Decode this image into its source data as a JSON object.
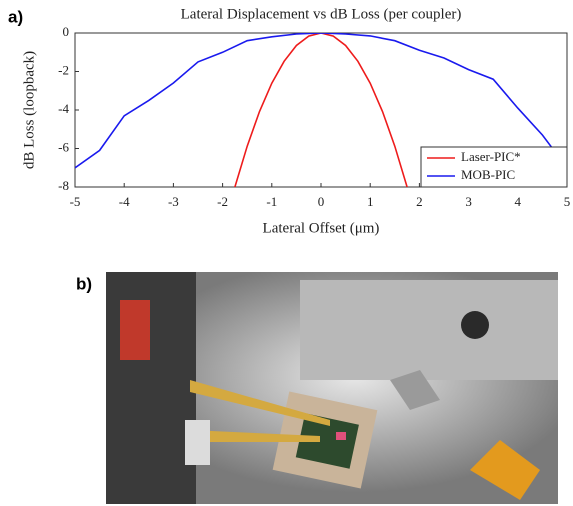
{
  "panel_labels": [
    "a)",
    "b)"
  ],
  "chart_data": {
    "type": "line",
    "title": "Lateral Displacement vs dB Loss (per coupler)",
    "x_label": "Lateral Offset (μm)",
    "y_label": "dB Loss (loopback)",
    "xlim": [
      -5,
      5
    ],
    "xticks": [
      -5,
      -4,
      -3,
      -2,
      -1,
      0,
      1,
      2,
      3,
      4,
      5
    ],
    "ylim": [
      -8,
      0
    ],
    "yticks": [
      -8,
      -6,
      -4,
      -2,
      0
    ],
    "legend": "lower right",
    "series": [
      {
        "name": "Laser-PIC*",
        "color": "#ee1c1c",
        "x": [
          -1.75,
          -1.5,
          -1.25,
          -1,
          -0.75,
          -0.5,
          -0.25,
          0,
          0.25,
          0.5,
          0.75,
          1,
          1.25,
          1.5,
          1.75
        ],
        "values": [
          -8,
          -5.88,
          -4.08,
          -2.61,
          -1.47,
          -0.65,
          -0.16,
          0,
          -0.16,
          -0.65,
          -1.47,
          -2.61,
          -4.08,
          -5.88,
          -8
        ]
      },
      {
        "name": "MOB-PIC",
        "color": "#1a1aee",
        "x": [
          -5,
          -4.5,
          -4,
          -3.5,
          -3,
          -2.5,
          -2,
          -1.5,
          -1,
          -0.5,
          0,
          0.5,
          1,
          1.5,
          2,
          2.5,
          3,
          3.5,
          4,
          4.5,
          5
        ],
        "values": [
          -7,
          -6.1,
          -4.3,
          -3.5,
          -2.6,
          -1.5,
          -1,
          -0.4,
          -0.2,
          -0.05,
          0,
          -0.05,
          -0.15,
          -0.4,
          -0.9,
          -1.3,
          -1.9,
          -2.4,
          -3.9,
          -5.3,
          -7
        ]
      }
    ]
  }
}
